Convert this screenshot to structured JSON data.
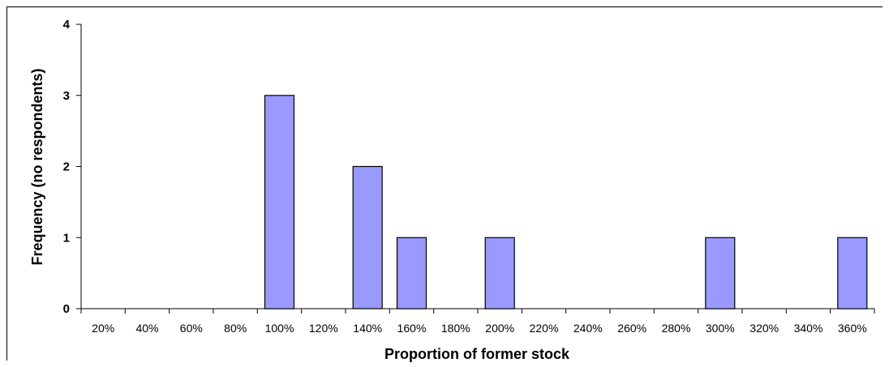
{
  "chart_data": {
    "type": "bar",
    "title": "",
    "xlabel": "Proportion of former stock",
    "ylabel": "Frequency (no respondents)",
    "categories": [
      "20%",
      "40%",
      "60%",
      "80%",
      "100%",
      "120%",
      "140%",
      "160%",
      "180%",
      "200%",
      "220%",
      "240%",
      "260%",
      "280%",
      "300%",
      "320%",
      "340%",
      "360%"
    ],
    "values": [
      0,
      0,
      0,
      0,
      3,
      0,
      2,
      1,
      0,
      1,
      0,
      0,
      0,
      0,
      1,
      0,
      0,
      1
    ],
    "ylim": [
      0,
      4
    ],
    "yticks": [
      0,
      1,
      2,
      3,
      4
    ],
    "grid": false,
    "legend": "none",
    "bar_color": "#9999ff",
    "bar_edge_color": "#000000"
  }
}
